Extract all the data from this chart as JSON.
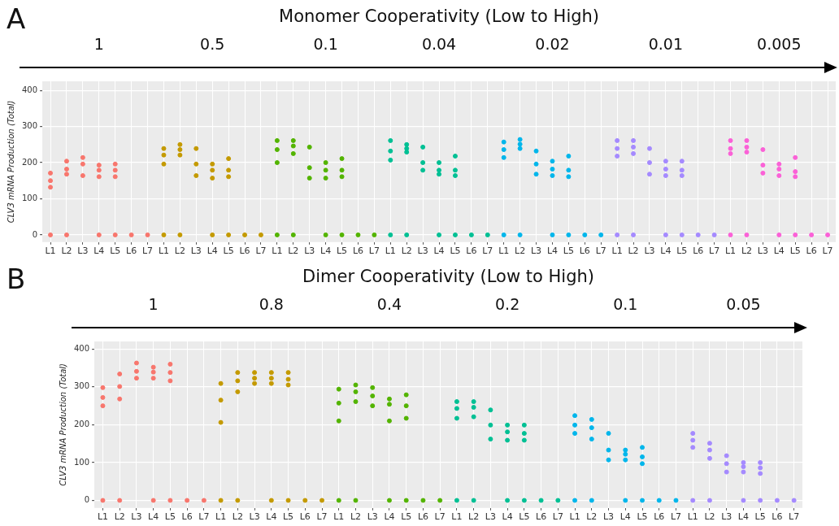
{
  "chart_data": [
    {
      "type": "scatter",
      "title": "Monomer Cooperativity (Low to High)",
      "ylabel": "CLV3 mRNA Production (Total)",
      "annotations": [
        "A",
        "1",
        "0.5",
        "0.1",
        "0.04",
        "0.02",
        "0.01",
        "0.005"
      ],
      "marker": "circle",
      "grid": true,
      "ylim": [
        -20,
        425
      ],
      "yticks": [
        0,
        100,
        200,
        300,
        400
      ],
      "categories": [
        "L1",
        "L2",
        "L3",
        "L4",
        "L5",
        "L6",
        "L7",
        "L1",
        "L2",
        "L3",
        "L4",
        "L5",
        "L6",
        "L7",
        "L1",
        "L2",
        "L3",
        "L4",
        "L5",
        "L6",
        "L7",
        "L1",
        "L2",
        "L3",
        "L4",
        "L5",
        "L6",
        "L7",
        "L1",
        "L2",
        "L3",
        "L4",
        "L5",
        "L6",
        "L7",
        "L1",
        "L2",
        "L3",
        "L4",
        "L5",
        "L6",
        "L7",
        "L1",
        "L2",
        "L3",
        "L4",
        "L5",
        "L6",
        "L7"
      ],
      "series": [
        {
          "colors": [
            "#f8766d",
            "#f8766d",
            "#f8766d",
            "#f8766d",
            "#f8766d",
            "#f8766d",
            "#f8766d",
            "#c49a00",
            "#c49a00",
            "#c49a00",
            "#c49a00",
            "#c49a00",
            "#c49a00",
            "#c49a00",
            "#53b400",
            "#53b400",
            "#53b400",
            "#53b400",
            "#53b400",
            "#53b400",
            "#53b400",
            "#00c094",
            "#00c094",
            "#00c094",
            "#00c094",
            "#00c094",
            "#00c094",
            "#00c094",
            "#00b6eb",
            "#00b6eb",
            "#00b6eb",
            "#00b6eb",
            "#00b6eb",
            "#00b6eb",
            "#00b6eb",
            "#a58aff",
            "#a58aff",
            "#a58aff",
            "#a58aff",
            "#a58aff",
            "#a58aff",
            "#a58aff",
            "#fb61d7",
            "#fb61d7",
            "#fb61d7",
            "#fb61d7",
            "#fb61d7",
            "#fb61d7",
            "#fb61d7"
          ],
          "values": [
            171,
            204,
            214,
            193,
            196,
            null,
            null,
            239,
            250,
            239,
            196,
            211,
            null,
            null,
            261,
            261,
            243,
            200,
            211,
            null,
            null,
            261,
            250,
            243,
            200,
            218,
            null,
            null,
            257,
            264,
            232,
            204,
            218,
            null,
            null,
            261,
            261,
            239,
            204,
            204,
            null,
            null,
            261,
            261,
            236,
            196,
            214,
            null,
            null
          ]
        },
        {
          "colors": [
            "#f8766d",
            "#f8766d",
            "#f8766d",
            "#f8766d",
            "#f8766d",
            "#f8766d",
            "#f8766d",
            "#c49a00",
            "#c49a00",
            "#c49a00",
            "#c49a00",
            "#c49a00",
            "#c49a00",
            "#c49a00",
            "#53b400",
            "#53b400",
            "#53b400",
            "#53b400",
            "#53b400",
            "#53b400",
            "#53b400",
            "#00c094",
            "#00c094",
            "#00c094",
            "#00c094",
            "#00c094",
            "#00c094",
            "#00c094",
            "#00b6eb",
            "#00b6eb",
            "#00b6eb",
            "#00b6eb",
            "#00b6eb",
            "#00b6eb",
            "#00b6eb",
            "#a58aff",
            "#a58aff",
            "#a58aff",
            "#a58aff",
            "#a58aff",
            "#a58aff",
            "#a58aff",
            "#fb61d7",
            "#fb61d7",
            "#fb61d7",
            "#fb61d7",
            "#fb61d7",
            "#fb61d7",
            "#fb61d7"
          ],
          "values": [
            150,
            182,
            196,
            179,
            179,
            null,
            null,
            221,
            236,
            196,
            179,
            179,
            null,
            null,
            236,
            246,
            186,
            179,
            179,
            null,
            null,
            232,
            239,
            200,
            179,
            179,
            null,
            null,
            236,
            251,
            196,
            182,
            179,
            null,
            null,
            239,
            243,
            200,
            182,
            179,
            null,
            null,
            239,
            243,
            193,
            182,
            175,
            null,
            null
          ]
        },
        {
          "colors": [
            "#f8766d",
            "#f8766d",
            "#f8766d",
            "#f8766d",
            "#f8766d",
            "#f8766d",
            "#f8766d",
            "#c49a00",
            "#c49a00",
            "#c49a00",
            "#c49a00",
            "#c49a00",
            "#c49a00",
            "#c49a00",
            "#53b400",
            "#53b400",
            "#53b400",
            "#53b400",
            "#53b400",
            "#53b400",
            "#53b400",
            "#00c094",
            "#00c094",
            "#00c094",
            "#00c094",
            "#00c094",
            "#00c094",
            "#00c094",
            "#00b6eb",
            "#00b6eb",
            "#00b6eb",
            "#00b6eb",
            "#00b6eb",
            "#00b6eb",
            "#00b6eb",
            "#a58aff",
            "#a58aff",
            "#a58aff",
            "#a58aff",
            "#a58aff",
            "#a58aff",
            "#a58aff",
            "#fb61d7",
            "#fb61d7",
            "#fb61d7",
            "#fb61d7",
            "#fb61d7",
            "#fb61d7",
            "#fb61d7"
          ],
          "values": [
            132,
            168,
            164,
            161,
            161,
            null,
            null,
            196,
            221,
            164,
            157,
            161,
            null,
            null,
            200,
            225,
            157,
            157,
            161,
            null,
            null,
            207,
            229,
            179,
            168,
            164,
            null,
            null,
            214,
            239,
            168,
            164,
            161,
            null,
            null,
            218,
            225,
            168,
            164,
            164,
            null,
            null,
            225,
            229,
            171,
            164,
            161,
            null,
            null
          ]
        },
        {
          "colors": [
            "#f8766d",
            "#f8766d",
            "#f8766d",
            "#f8766d",
            "#f8766d",
            "#f8766d",
            "#f8766d",
            "#c49a00",
            "#c49a00",
            "#c49a00",
            "#c49a00",
            "#c49a00",
            "#c49a00",
            "#c49a00",
            "#53b400",
            "#53b400",
            "#53b400",
            "#53b400",
            "#53b400",
            "#53b400",
            "#53b400",
            "#00c094",
            "#00c094",
            "#00c094",
            "#00c094",
            "#00c094",
            "#00c094",
            "#00c094",
            "#00b6eb",
            "#00b6eb",
            "#00b6eb",
            "#00b6eb",
            "#00b6eb",
            "#00b6eb",
            "#00b6eb",
            "#a58aff",
            "#a58aff",
            "#a58aff",
            "#a58aff",
            "#a58aff",
            "#a58aff",
            "#a58aff",
            "#fb61d7",
            "#fb61d7",
            "#fb61d7",
            "#fb61d7",
            "#fb61d7",
            "#fb61d7",
            "#fb61d7"
          ],
          "values": [
            0,
            0,
            null,
            0,
            0,
            0,
            0,
            0,
            0,
            null,
            0,
            0,
            0,
            0,
            0,
            0,
            null,
            0,
            0,
            0,
            0,
            0,
            0,
            null,
            0,
            0,
            0,
            0,
            0,
            0,
            null,
            0,
            0,
            0,
            0,
            0,
            0,
            null,
            0,
            0,
            0,
            0,
            0,
            0,
            null,
            0,
            0,
            0,
            0
          ]
        }
      ]
    },
    {
      "type": "scatter",
      "title": "Dimer Cooperativity (Low to High)",
      "ylabel": "CLV3 mRNA Production (Total)",
      "annotations": [
        "B",
        "1",
        "0.8",
        "0.4",
        "0.2",
        "0.1",
        "0.05"
      ],
      "marker": "circle",
      "grid": true,
      "ylim": [
        -20,
        420
      ],
      "yticks": [
        0,
        100,
        200,
        300,
        400
      ],
      "categories": [
        "L1",
        "L2",
        "L3",
        "L4",
        "L5",
        "L6",
        "L7",
        "L1",
        "L2",
        "L3",
        "L4",
        "L5",
        "L6",
        "L7",
        "L1",
        "L2",
        "L3",
        "L4",
        "L5",
        "L6",
        "L7",
        "L1",
        "L2",
        "L3",
        "L4",
        "L5",
        "L6",
        "L7",
        "L1",
        "L2",
        "L3",
        "L4",
        "L5",
        "L6",
        "L7",
        "L1",
        "L2",
        "L3",
        "L4",
        "L5",
        "L6",
        "L7"
      ],
      "series": [
        {
          "colors": [
            "#f8766d",
            "#f8766d",
            "#f8766d",
            "#f8766d",
            "#f8766d",
            "#f8766d",
            "#f8766d",
            "#c49a00",
            "#c49a00",
            "#c49a00",
            "#c49a00",
            "#c49a00",
            "#c49a00",
            "#c49a00",
            "#53b400",
            "#53b400",
            "#53b400",
            "#53b400",
            "#53b400",
            "#53b400",
            "#53b400",
            "#00c094",
            "#00c094",
            "#00c094",
            "#00c094",
            "#00c094",
            "#00c094",
            "#00c094",
            "#00b6eb",
            "#00b6eb",
            "#00b6eb",
            "#00b6eb",
            "#00b6eb",
            "#00b6eb",
            "#00b6eb",
            "#a58aff",
            "#a58aff",
            "#a58aff",
            "#a58aff",
            "#a58aff",
            "#a58aff",
            "#a58aff"
          ],
          "values": [
            298,
            334,
            363,
            352,
            360,
            null,
            null,
            309,
            338,
            338,
            338,
            338,
            null,
            null,
            294,
            305,
            298,
            268,
            279,
            null,
            null,
            261,
            261,
            239,
            199,
            199,
            null,
            null,
            224,
            214,
            177,
            133,
            140,
            null,
            null,
            177,
            151,
            118,
            100,
            100,
            null,
            null
          ]
        },
        {
          "colors": [
            "#f8766d",
            "#f8766d",
            "#f8766d",
            "#f8766d",
            "#f8766d",
            "#f8766d",
            "#f8766d",
            "#c49a00",
            "#c49a00",
            "#c49a00",
            "#c49a00",
            "#c49a00",
            "#c49a00",
            "#c49a00",
            "#53b400",
            "#53b400",
            "#53b400",
            "#53b400",
            "#53b400",
            "#53b400",
            "#53b400",
            "#00c094",
            "#00c094",
            "#00c094",
            "#00c094",
            "#00c094",
            "#00c094",
            "#00c094",
            "#00b6eb",
            "#00b6eb",
            "#00b6eb",
            "#00b6eb",
            "#00b6eb",
            "#00b6eb",
            "#00b6eb",
            "#a58aff",
            "#a58aff",
            "#a58aff",
            "#a58aff",
            "#a58aff",
            "#a58aff",
            "#a58aff"
          ],
          "values": [
            272,
            301,
            341,
            339,
            338,
            null,
            null,
            265,
            316,
            323,
            323,
            320,
            null,
            null,
            257,
            287,
            276,
            254,
            250,
            null,
            null,
            243,
            246,
            199,
            181,
            177,
            null,
            null,
            199,
            192,
            133,
            122,
            115,
            null,
            null,
            159,
            133,
            97,
            89,
            86,
            null,
            null
          ]
        },
        {
          "colors": [
            "#f8766d",
            "#f8766d",
            "#f8766d",
            "#f8766d",
            "#f8766d",
            "#f8766d",
            "#f8766d",
            "#c49a00",
            "#c49a00",
            "#c49a00",
            "#c49a00",
            "#c49a00",
            "#c49a00",
            "#c49a00",
            "#53b400",
            "#53b400",
            "#53b400",
            "#53b400",
            "#53b400",
            "#53b400",
            "#53b400",
            "#00c094",
            "#00c094",
            "#00c094",
            "#00c094",
            "#00c094",
            "#00c094",
            "#00c094",
            "#00b6eb",
            "#00b6eb",
            "#00b6eb",
            "#00b6eb",
            "#00b6eb",
            "#00b6eb",
            "#00b6eb",
            "#a58aff",
            "#a58aff",
            "#a58aff",
            "#a58aff",
            "#a58aff",
            "#a58aff",
            "#a58aff"
          ],
          "values": [
            250,
            268,
            323,
            323,
            316,
            null,
            null,
            206,
            287,
            309,
            309,
            305,
            null,
            null,
            210,
            261,
            250,
            210,
            217,
            null,
            null,
            217,
            221,
            162,
            159,
            159,
            null,
            null,
            177,
            162,
            107,
            107,
            97,
            null,
            null,
            140,
            111,
            75,
            75,
            71,
            null,
            null
          ]
        },
        {
          "colors": [
            "#f8766d",
            "#f8766d",
            "#f8766d",
            "#f8766d",
            "#f8766d",
            "#f8766d",
            "#f8766d",
            "#c49a00",
            "#c49a00",
            "#c49a00",
            "#c49a00",
            "#c49a00",
            "#c49a00",
            "#c49a00",
            "#53b400",
            "#53b400",
            "#53b400",
            "#53b400",
            "#53b400",
            "#53b400",
            "#53b400",
            "#00c094",
            "#00c094",
            "#00c094",
            "#00c094",
            "#00c094",
            "#00c094",
            "#00c094",
            "#00b6eb",
            "#00b6eb",
            "#00b6eb",
            "#00b6eb",
            "#00b6eb",
            "#00b6eb",
            "#00b6eb",
            "#a58aff",
            "#a58aff",
            "#a58aff",
            "#a58aff",
            "#a58aff",
            "#a58aff",
            "#a58aff"
          ],
          "values": [
            0,
            0,
            null,
            0,
            0,
            0,
            0,
            0,
            0,
            null,
            0,
            0,
            0,
            0,
            0,
            0,
            null,
            0,
            0,
            0,
            0,
            0,
            0,
            null,
            0,
            0,
            0,
            0,
            0,
            0,
            null,
            0,
            0,
            0,
            0,
            0,
            0,
            null,
            0,
            0,
            0,
            0
          ]
        }
      ]
    }
  ]
}
